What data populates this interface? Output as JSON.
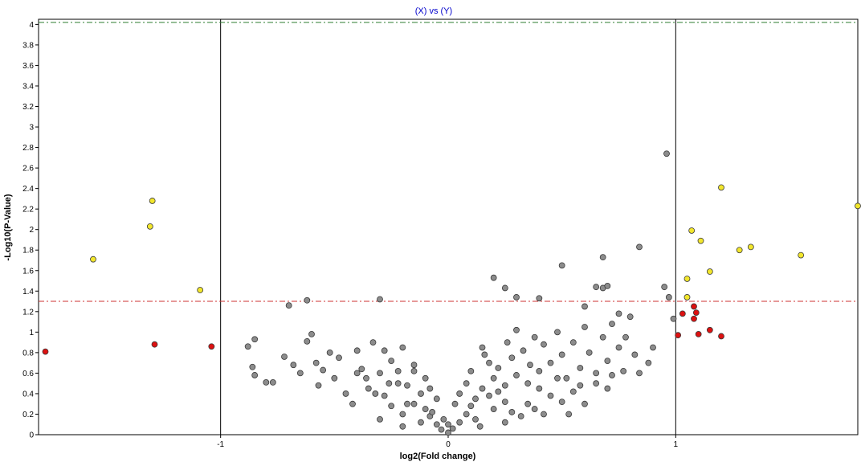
{
  "chart_data": {
    "type": "scatter",
    "title": "(X) vs (Y)",
    "xlabel": "log2(Fold change)",
    "ylabel": "-Log10(P-Value)",
    "xlim": [
      -1.8,
      1.8
    ],
    "ylim": [
      0,
      4.05
    ],
    "x_ticks": [
      -1,
      0,
      1
    ],
    "x_tick_labels": [
      "-1",
      "0",
      "1"
    ],
    "y_ticks": [
      0,
      0.2,
      0.4,
      0.6,
      0.8,
      1,
      1.2,
      1.4,
      1.6,
      1.8,
      2,
      2.2,
      2.4,
      2.6,
      2.8,
      3,
      3.2,
      3.4,
      3.6,
      3.8,
      4
    ],
    "y_tick_labels": [
      "0",
      "0.2",
      "0.4",
      "0.6",
      "0.8",
      "1",
      "1.2",
      "1.4",
      "1.6",
      "1.8",
      "2",
      "2.2",
      "2.4",
      "2.6",
      "2.8",
      "3",
      "3.2",
      "3.4",
      "3.6",
      "3.8",
      "4"
    ],
    "grid": false,
    "vertical_lines": [
      -1,
      1
    ],
    "horizontal_lines": [
      {
        "y": 1.3,
        "color": "#cc3333",
        "style": "dashdot"
      },
      {
        "y": 4.02,
        "color": "#2e7d32",
        "style": "dashdot"
      }
    ],
    "colors": {
      "significant": "#f2e62c",
      "fold_only": "#dd1111",
      "not_significant": "#8c8c8c"
    },
    "series": [
      {
        "key": "significant",
        "points": [
          [
            -1.56,
            1.71
          ],
          [
            -1.3,
            2.28
          ],
          [
            -1.31,
            2.03
          ],
          [
            -1.09,
            1.41
          ],
          [
            1.07,
            1.99
          ],
          [
            1.2,
            2.41
          ],
          [
            1.11,
            1.89
          ],
          [
            1.05,
            1.52
          ],
          [
            1.05,
            1.34
          ],
          [
            1.15,
            1.59
          ],
          [
            1.28,
            1.8
          ],
          [
            1.33,
            1.83
          ],
          [
            1.55,
            1.75
          ],
          [
            1.8,
            2.23
          ]
        ]
      },
      {
        "key": "fold_only",
        "points": [
          [
            -1.77,
            0.81
          ],
          [
            -1.29,
            0.88
          ],
          [
            -1.04,
            0.86
          ],
          [
            1.01,
            0.97
          ],
          [
            1.03,
            1.18
          ],
          [
            1.08,
            1.25
          ],
          [
            1.09,
            1.19
          ],
          [
            1.08,
            1.13
          ],
          [
            1.1,
            0.98
          ],
          [
            1.15,
            1.02
          ],
          [
            1.2,
            0.96
          ]
        ]
      },
      {
        "key": "not_significant",
        "points": [
          [
            0.96,
            2.74
          ],
          [
            0.84,
            1.83
          ],
          [
            0.5,
            1.65
          ],
          [
            0.68,
            1.73
          ],
          [
            0.2,
            1.53
          ],
          [
            0.25,
            1.43
          ],
          [
            0.3,
            1.34
          ],
          [
            0.4,
            1.33
          ],
          [
            0.65,
            1.44
          ],
          [
            0.68,
            1.43
          ],
          [
            0.7,
            1.45
          ],
          [
            0.95,
            1.44
          ],
          [
            0.97,
            1.34
          ],
          [
            0.99,
            1.13
          ],
          [
            -0.3,
            1.32
          ],
          [
            -0.62,
            1.31
          ],
          [
            -0.7,
            1.26
          ],
          [
            -0.88,
            0.86
          ],
          [
            -0.85,
            0.93
          ],
          [
            -0.86,
            0.66
          ],
          [
            -0.85,
            0.58
          ],
          [
            -0.8,
            0.51
          ],
          [
            -0.77,
            0.51
          ],
          [
            -0.72,
            0.76
          ],
          [
            -0.68,
            0.68
          ],
          [
            -0.65,
            0.6
          ],
          [
            -0.62,
            0.91
          ],
          [
            -0.6,
            0.98
          ],
          [
            -0.58,
            0.7
          ],
          [
            -0.57,
            0.48
          ],
          [
            -0.55,
            0.63
          ],
          [
            -0.52,
            0.8
          ],
          [
            -0.5,
            0.55
          ],
          [
            -0.48,
            0.75
          ],
          [
            -0.45,
            0.4
          ],
          [
            -0.4,
            0.82
          ],
          [
            -0.38,
            0.64
          ],
          [
            -0.35,
            0.45
          ],
          [
            -0.33,
            0.9
          ],
          [
            -0.3,
            0.6
          ],
          [
            -0.28,
            0.38
          ],
          [
            -0.25,
            0.72
          ],
          [
            -0.22,
            0.5
          ],
          [
            -0.2,
            0.85
          ],
          [
            -0.18,
            0.3
          ],
          [
            -0.15,
            0.62
          ],
          [
            -0.12,
            0.4
          ],
          [
            -0.1,
            0.25
          ],
          [
            -0.08,
            0.18
          ],
          [
            -0.05,
            0.1
          ],
          [
            -0.03,
            0.05
          ],
          [
            0.0,
            0.02
          ],
          [
            0.02,
            0.06
          ],
          [
            0.05,
            0.12
          ],
          [
            0.08,
            0.2
          ],
          [
            0.1,
            0.28
          ],
          [
            0.12,
            0.35
          ],
          [
            0.15,
            0.45
          ],
          [
            0.18,
            0.38
          ],
          [
            0.2,
            0.55
          ],
          [
            0.22,
            0.65
          ],
          [
            0.25,
            0.48
          ],
          [
            0.28,
            0.75
          ],
          [
            0.3,
            0.58
          ],
          [
            0.33,
            0.82
          ],
          [
            0.35,
            0.5
          ],
          [
            0.38,
            0.95
          ],
          [
            0.4,
            0.62
          ],
          [
            0.42,
            0.88
          ],
          [
            0.45,
            0.7
          ],
          [
            0.48,
            1.0
          ],
          [
            0.5,
            0.78
          ],
          [
            0.52,
            0.55
          ],
          [
            0.55,
            0.9
          ],
          [
            0.58,
            0.65
          ],
          [
            0.6,
            1.05
          ],
          [
            0.62,
            0.8
          ],
          [
            0.65,
            0.6
          ],
          [
            0.68,
            0.95
          ],
          [
            0.7,
            0.72
          ],
          [
            0.72,
            1.08
          ],
          [
            0.75,
            0.85
          ],
          [
            0.77,
            0.62
          ],
          [
            0.8,
            1.15
          ],
          [
            0.82,
            0.78
          ],
          [
            0.84,
            0.6
          ],
          [
            0.6,
            1.25
          ],
          [
            0.75,
            1.18
          ],
          [
            0.3,
            1.02
          ],
          [
            0.15,
            0.85
          ],
          [
            0.1,
            0.62
          ],
          [
            0.05,
            0.4
          ],
          [
            -0.05,
            0.35
          ],
          [
            -0.1,
            0.55
          ],
          [
            -0.15,
            0.3
          ],
          [
            -0.2,
            0.2
          ],
          [
            -0.25,
            0.28
          ],
          [
            -0.3,
            0.15
          ],
          [
            -0.12,
            0.12
          ],
          [
            0.12,
            0.15
          ],
          [
            0.2,
            0.25
          ],
          [
            0.25,
            0.32
          ],
          [
            0.35,
            0.3
          ],
          [
            0.4,
            0.45
          ],
          [
            0.45,
            0.38
          ],
          [
            0.55,
            0.42
          ],
          [
            0.65,
            0.5
          ],
          [
            0.7,
            0.45
          ],
          [
            0.18,
            0.7
          ],
          [
            0.22,
            0.42
          ],
          [
            0.28,
            0.22
          ],
          [
            0.32,
            0.18
          ],
          [
            0.38,
            0.25
          ],
          [
            -0.02,
            0.15
          ],
          [
            -0.07,
            0.22
          ],
          [
            0.0,
            0.1
          ],
          [
            0.03,
            0.3
          ],
          [
            -0.15,
            0.68
          ],
          [
            -0.18,
            0.48
          ],
          [
            -0.22,
            0.62
          ],
          [
            -0.26,
            0.5
          ],
          [
            -0.28,
            0.82
          ],
          [
            -0.32,
            0.4
          ],
          [
            -0.36,
            0.55
          ],
          [
            -0.4,
            0.6
          ],
          [
            -0.42,
            0.3
          ],
          [
            -0.08,
            0.45
          ],
          [
            0.08,
            0.5
          ],
          [
            0.14,
            0.08
          ],
          [
            -0.2,
            0.08
          ],
          [
            0.25,
            0.12
          ],
          [
            0.42,
            0.2
          ],
          [
            0.5,
            0.32
          ],
          [
            0.6,
            0.3
          ],
          [
            0.48,
            0.55
          ],
          [
            0.36,
            0.68
          ],
          [
            0.26,
            0.9
          ],
          [
            0.16,
            0.78
          ],
          [
            0.9,
            0.85
          ],
          [
            0.88,
            0.7
          ],
          [
            0.78,
            0.95
          ],
          [
            0.72,
            0.58
          ],
          [
            0.58,
            0.48
          ],
          [
            0.53,
            0.2
          ]
        ]
      }
    ]
  }
}
